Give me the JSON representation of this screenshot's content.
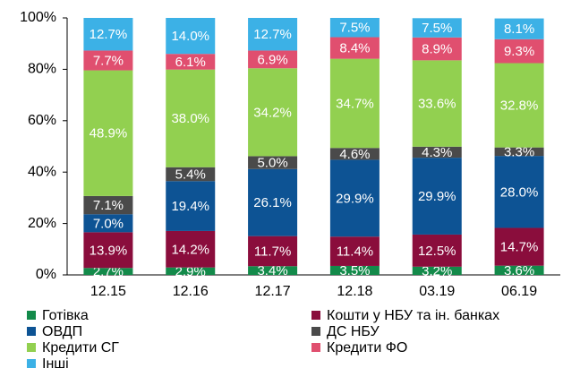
{
  "chart_data": {
    "type": "stacked_bar",
    "categories": [
      "12.15",
      "12.16",
      "12.17",
      "12.18",
      "03.19",
      "06.19"
    ],
    "series": [
      {
        "name": "Готівка",
        "color": "#138a4a",
        "values": [
          2.7,
          2.9,
          3.4,
          3.5,
          3.2,
          3.6
        ],
        "value_labels": [
          "2.7%",
          "2.9%",
          "3.4%",
          "3.5%",
          "3.2%",
          "3.6%"
        ]
      },
      {
        "name": "Кошти у НБУ та ін. банках",
        "color": "#8a0d3c",
        "values": [
          13.9,
          14.2,
          11.7,
          11.4,
          12.5,
          14.7
        ],
        "value_labels": [
          "13.9%",
          "14.2%",
          "11.7%",
          "11.4%",
          "12.5%",
          "14.7%"
        ]
      },
      {
        "name": "ОВДП",
        "color": "#0d5394",
        "values": [
          7.0,
          19.4,
          26.1,
          29.9,
          29.9,
          28.0
        ],
        "value_labels": [
          "7.0%",
          "19.4%",
          "26.1%",
          "29.9%",
          "29.9%",
          "28.0%"
        ]
      },
      {
        "name": "ДС НБУ",
        "color": "#4a4a4a",
        "values": [
          7.1,
          5.4,
          5.0,
          4.6,
          4.3,
          3.3
        ],
        "value_labels": [
          "7.1%",
          "5.4%",
          "5.0%",
          "4.6%",
          "4.3%",
          "3.3%"
        ]
      },
      {
        "name": "Кредити СГ",
        "color": "#92d050",
        "values": [
          48.9,
          38.0,
          34.2,
          34.7,
          33.6,
          32.8
        ],
        "value_labels": [
          "48.9%",
          "38.0%",
          "34.2%",
          "34.7%",
          "33.6%",
          "32.8%"
        ]
      },
      {
        "name": "Кредити ФО",
        "color": "#e04f6f",
        "values": [
          7.7,
          6.1,
          6.9,
          8.4,
          8.9,
          9.3
        ],
        "value_labels": [
          "7.7%",
          "6.1%",
          "6.9%",
          "8.4%",
          "8.9%",
          "9.3%"
        ]
      },
      {
        "name": "Інші",
        "color": "#3cb1e6",
        "values": [
          12.7,
          14.0,
          12.7,
          7.5,
          7.5,
          8.1
        ],
        "value_labels": [
          "12.7%",
          "14.0%",
          "12.7%",
          "7.5%",
          "7.5%",
          "8.1%"
        ]
      }
    ],
    "ylim": [
      0,
      100
    ],
    "yticks": [
      {
        "value": 0,
        "label": "0%"
      },
      {
        "value": 20,
        "label": "20%"
      },
      {
        "value": 40,
        "label": "40%"
      },
      {
        "value": 60,
        "label": "60%"
      },
      {
        "value": 80,
        "label": "80%"
      },
      {
        "value": 100,
        "label": "100%"
      }
    ]
  }
}
